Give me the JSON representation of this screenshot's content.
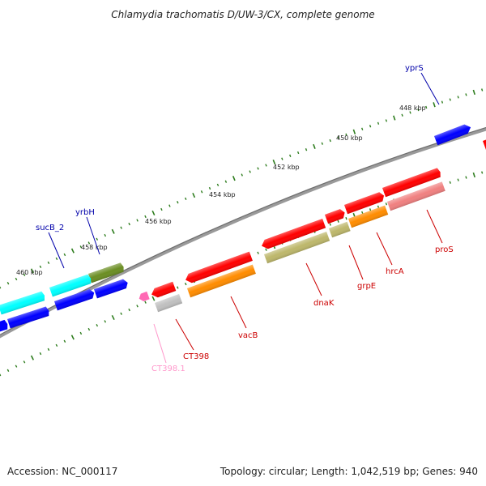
{
  "title": "Chlamydia trachomatis D/UW-3/CX, complete genome",
  "footer": {
    "accession": "Accession: NC_000117",
    "summary": "Topology: circular; Length: 1,042,519 bp; Genes: 940"
  },
  "ticks": [
    "448 kbp",
    "450 kbp",
    "452 kbp",
    "454 kbp",
    "456 kbp",
    "458 kbp",
    "460 kbp"
  ],
  "genes": {
    "yprS": "yprS",
    "sucB_2": "sucB_2",
    "yrbH": "yrbH",
    "CT398_1": "CT398.1",
    "CT398": "CT398",
    "vacB": "vacB",
    "dnaK": "dnaK",
    "grpE": "grpE",
    "hrcA": "hrcA",
    "proS": "proS"
  },
  "colors": {
    "backbone": "#808080",
    "tick_green": "#2e7d1e",
    "red": "#ff0000",
    "blue": "#0000ff",
    "cyan": "#00ffff",
    "olive": "#6b8e23",
    "orange": "#ff8c00",
    "khaki": "#bdb76b",
    "salmon": "#f08080",
    "pink": "#ff69b4",
    "gray": "#c0c0c0",
    "label_blue": "#0000aa",
    "label_red": "#cc0000",
    "label_pink": "#ff99cc"
  }
}
